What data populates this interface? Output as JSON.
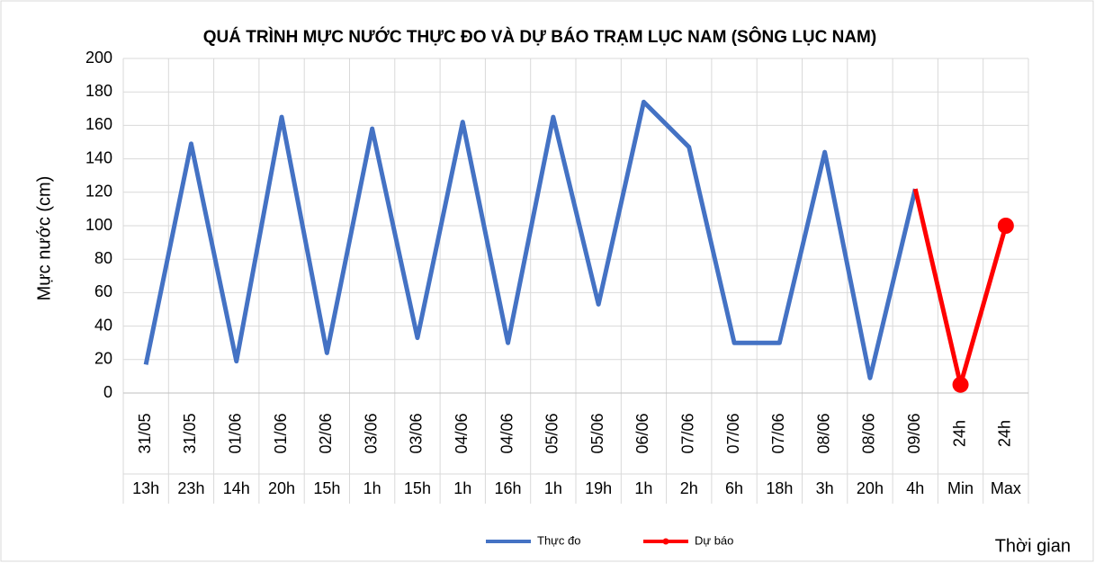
{
  "chart_data": {
    "type": "line",
    "title": "QUÁ TRÌNH MỰC NƯỚC THỰC ĐO VÀ DỰ BÁO TRẠM LỤC NAM (SÔNG LỤC NAM)",
    "y_label": "Mực nước (cm)",
    "x_label": "Thời gian",
    "categories": [
      "31/05",
      "31/05",
      "01/06",
      "01/06",
      "02/06",
      "03/06",
      "03/06",
      "04/06",
      "04/06",
      "05/06",
      "05/06",
      "06/06",
      "07/06",
      "07/06",
      "07/06",
      "08/06",
      "08/06",
      "09/06",
      "24h",
      "24h"
    ],
    "sub_categories": [
      "13h",
      "23h",
      "14h",
      "20h",
      "15h",
      "1h",
      "15h",
      "1h",
      "16h",
      "1h",
      "19h",
      "1h",
      "2h",
      "6h",
      "18h",
      "3h",
      "20h",
      "4h",
      "Min",
      "Max"
    ],
    "series": [
      {
        "name": "Thực đo",
        "color": "#4472c4",
        "values": [
          17,
          149,
          19,
          165,
          24,
          158,
          33,
          162,
          30,
          165,
          53,
          174,
          147,
          30,
          30,
          144,
          9,
          122,
          null,
          null
        ]
      },
      {
        "name": "Dự báo",
        "color": "#ff0000",
        "values": [
          null,
          null,
          null,
          null,
          null,
          null,
          null,
          null,
          null,
          null,
          null,
          null,
          null,
          null,
          null,
          null,
          null,
          122,
          5,
          100
        ]
      }
    ],
    "ylim": [
      0,
      200
    ],
    "yticks": [
      0,
      20,
      40,
      60,
      80,
      100,
      120,
      140,
      160,
      180,
      200
    ],
    "grid": true,
    "legend": "bottom"
  }
}
